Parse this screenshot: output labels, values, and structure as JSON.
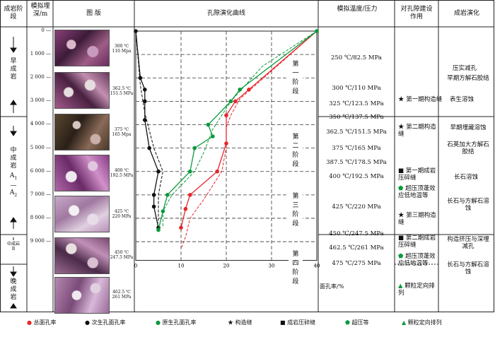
{
  "headers": {
    "stage": "成岩阶段",
    "depth": "模拟埋深/m",
    "plate": "图 版",
    "curve": "孔隙演化曲线",
    "temp": "模拟温度/压力",
    "effect": "对孔隙建设作用",
    "evolution": "成岩演化"
  },
  "stages": {
    "early": "早成岩",
    "middle": "中成岩",
    "middle_sub_a": "A",
    "middle_sub_sub1": "1",
    "middle_dash": "—",
    "middle_sub_a2": "A",
    "middle_sub_sub2": "2",
    "middle_b": "中成岩B",
    "late": "晚成岩"
  },
  "depth_ticks": [
    "0",
    "1 000",
    "2 000",
    "3 000",
    "4 000",
    "5 000",
    "6 000",
    "7 000",
    "8 000",
    "9 000"
  ],
  "photo_labels": [
    {
      "t": "300 ℃",
      "p": "110 Mpa"
    },
    {
      "t": "362.5 ℃",
      "p": "151.5 MPa"
    },
    {
      "t": "375 ℃",
      "p": "165 Mpa"
    },
    {
      "t": "400 ℃",
      "p": "192.5 MPa"
    },
    {
      "t": "425 ℃",
      "p": "220 MPa"
    },
    {
      "t": "450 ℃",
      "p": "247.5 MPa"
    },
    {
      "t": "462.5 ℃",
      "p": "261 MPa"
    }
  ],
  "phases": [
    "第一阶段",
    "第二阶段",
    "第三阶段",
    "第四阶段"
  ],
  "temp_pressure": [
    "250 ℃/82.5 MPa",
    "300 ℃/110 MPa",
    "325 ℃/123.5 MPa",
    "350 ℃/137.5 MPa",
    "362.5 ℃/151.5 MPa",
    "375 ℃/165 MPa",
    "387.5 ℃/178.5 MPa",
    "400 ℃/192.5 MPa",
    "425 ℃/220 MPa",
    "450 ℃/247.5 MPa",
    "462.5 ℃/261 MPa",
    "475 ℃/275 MPa"
  ],
  "effects": {
    "e1": "第一期构造缝",
    "e2": "第二期构造缝",
    "e3": "第一期成岩压碎缝",
    "e4": "超压顶蓬效应低地温等",
    "e5": "第三期构造缝",
    "e6": "第二期成岩压碎缝",
    "e7": "超压顶蓬效应低地温等",
    "e8": "颗粒定向排列"
  },
  "evolution": {
    "v1": "压实减孔",
    "v2": "早期方解石胶结",
    "v3": "表生溶蚀",
    "v4": "早期埋藏溶蚀",
    "v5": "石英加大方解石胶结",
    "v6": "长石溶蚀",
    "v7": "长石与方解石溶蚀",
    "v8": "构造挤压与深埋减孔",
    "v9": "长石与方解石溶蚀"
  },
  "legend": {
    "total": "总面孔率",
    "secondary": "次生孔面孔率",
    "primary": "原生孔面孔率",
    "tectonic": "构造缝",
    "crush": "成岩压碎缝",
    "overpressure": "超压等",
    "grain": "颗粒定向排列"
  },
  "colors": {
    "total": "#e8252b",
    "secondary": "#111111",
    "primary": "#0a9a3c"
  },
  "chart_data": {
    "type": "line",
    "xlabel": "面孔率/%",
    "xlim": [
      0,
      40
    ],
    "ylim": [
      0,
      9800
    ],
    "x_ticks": [
      "0",
      "10",
      "20",
      "30",
      "40"
    ],
    "series": [
      {
        "name": "总面孔率",
        "style": "solid",
        "points": [
          [
            40,
            0
          ],
          [
            25,
            2500
          ],
          [
            22,
            3000
          ],
          [
            20,
            3600
          ],
          [
            20,
            4800
          ],
          [
            18,
            6000
          ],
          [
            12,
            7000
          ],
          [
            11,
            7600
          ],
          [
            10,
            8400
          ]
        ]
      },
      {
        "name": "总面孔率",
        "style": "dashed",
        "points": [
          [
            40,
            0
          ],
          [
            23,
            2900
          ],
          [
            21,
            3600
          ],
          [
            20,
            4100
          ],
          [
            20,
            5000
          ],
          [
            19,
            6000
          ],
          [
            15,
            7200
          ],
          [
            12,
            8000
          ],
          [
            11,
            8800
          ],
          [
            10,
            9300
          ]
        ]
      },
      {
        "name": "次生孔面孔率",
        "style": "solid",
        "points": [
          [
            0,
            0
          ],
          [
            1,
            2000
          ],
          [
            2,
            2500
          ],
          [
            2,
            3000
          ],
          [
            2,
            3800
          ],
          [
            3,
            5000
          ],
          [
            5,
            6000
          ],
          [
            4,
            7000
          ],
          [
            4,
            7500
          ],
          [
            5,
            8400
          ]
        ]
      },
      {
        "name": "次生孔面孔率",
        "style": "dashed",
        "points": [
          [
            0,
            0
          ],
          [
            1,
            2300
          ],
          [
            2,
            3500
          ],
          [
            4,
            5000
          ],
          [
            6,
            6000
          ],
          [
            5,
            7000
          ],
          [
            5,
            7800
          ],
          [
            5,
            8200
          ]
        ]
      },
      {
        "name": "原生孔面孔率",
        "style": "solid",
        "points": [
          [
            40,
            0
          ],
          [
            23,
            2500
          ],
          [
            21,
            3000
          ],
          [
            16,
            4000
          ],
          [
            17,
            4500
          ],
          [
            13,
            5000
          ],
          [
            12,
            6000
          ],
          [
            7,
            7000
          ],
          [
            6,
            7700
          ],
          [
            5,
            8500
          ]
        ]
      },
      {
        "name": "原生孔面孔率",
        "style": "dashed",
        "points": [
          [
            40,
            0
          ],
          [
            28,
            1500
          ],
          [
            21,
            3000
          ],
          [
            17,
            4200
          ],
          [
            15,
            5200
          ],
          [
            13,
            6000
          ],
          [
            8,
            7000
          ],
          [
            6,
            7700
          ],
          [
            6,
            8400
          ]
        ]
      }
    ],
    "markers": [
      {
        "type": "tectonic",
        "label": "第一期构造缝",
        "depth": 3000
      },
      {
        "type": "tectonic",
        "label": "第二期构造缝",
        "depth": 3800
      },
      {
        "type": "crush",
        "label": "第一期成岩压碎缝",
        "depth": 4600
      },
      {
        "type": "overpressure",
        "label": "超压等",
        "depth": 5400
      },
      {
        "type": "tectonic",
        "label": "第三期构造缝",
        "depth": 6200
      },
      {
        "type": "crush",
        "label": "第二期成岩压碎缝",
        "depth": 6800
      },
      {
        "type": "overpressure",
        "label": "超压等",
        "depth": 7600
      },
      {
        "type": "grain",
        "label": "颗粒定向排列",
        "depth": 9000
      }
    ]
  }
}
